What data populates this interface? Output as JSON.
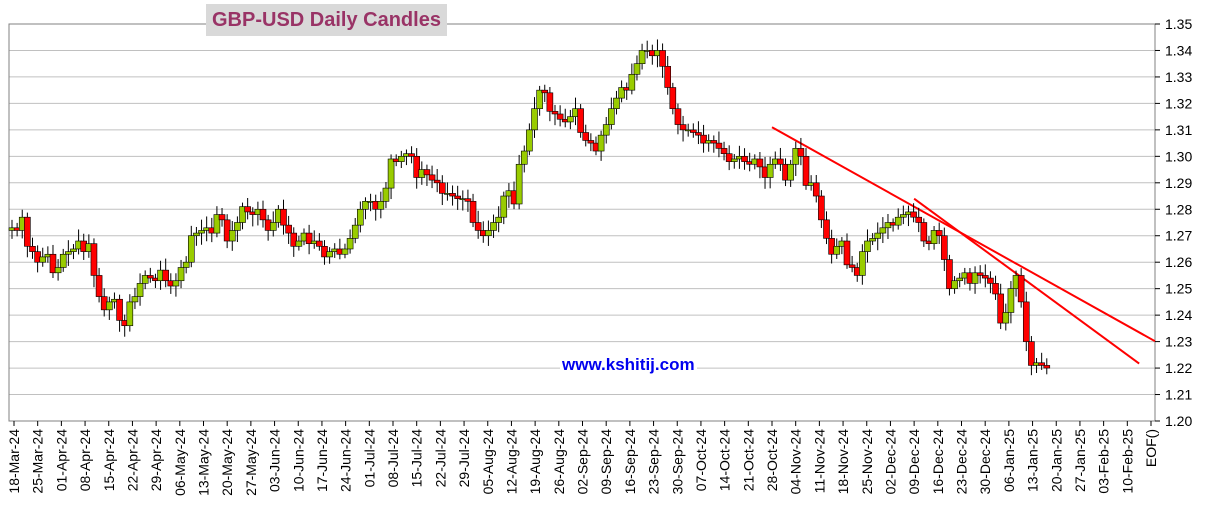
{
  "chart_data": {
    "type": "candlestick",
    "title": "GBP-USD Daily Candles",
    "watermark": "www.kshitij.com",
    "xlabel": "",
    "ylabel": "",
    "ylim": [
      1.2,
      1.35
    ],
    "yticks": [
      "1.20",
      "1.21",
      "1.22",
      "1.23",
      "1.24",
      "1.25",
      "1.26",
      "1.27",
      "1.28",
      "1.29",
      "1.30",
      "1.31",
      "1.32",
      "1.33",
      "1.34",
      "1.35"
    ],
    "xticks": [
      "18-Mar-24",
      "25-Mar-24",
      "01-Apr-24",
      "08-Apr-24",
      "15-Apr-24",
      "22-Apr-24",
      "29-Apr-24",
      "06-May-24",
      "13-May-24",
      "20-May-24",
      "27-May-24",
      "03-Jun-24",
      "10-Jun-24",
      "17-Jun-24",
      "24-Jun-24",
      "01-Jul-24",
      "08-Jul-24",
      "15-Jul-24",
      "22-Jul-24",
      "29-Jul-24",
      "05-Aug-24",
      "12-Aug-24",
      "19-Aug-24",
      "26-Aug-24",
      "02-Sep-24",
      "09-Sep-24",
      "16-Sep-24",
      "23-Sep-24",
      "30-Sep-24",
      "07-Oct-24",
      "14-Oct-24",
      "21-Oct-24",
      "28-Oct-24",
      "04-Nov-24",
      "11-Nov-24",
      "18-Nov-24",
      "25-Nov-24",
      "02-Dec-24",
      "09-Dec-24",
      "16-Dec-24",
      "23-Dec-24",
      "30-Dec-24",
      "06-Jan-25",
      "13-Jan-25",
      "20-Jan-25",
      "27-Jan-25",
      "03-Feb-25",
      "10-Feb-25",
      "EOF()"
    ],
    "grid": true,
    "colors": {
      "up": "#99cc00",
      "down": "#ff0000",
      "trendline": "#ff0000",
      "grid": "#c0c0c0",
      "title": "#993366",
      "watermark": "#0000ee"
    },
    "closes": [
      1.273,
      1.272,
      1.277,
      1.266,
      1.264,
      1.26,
      1.262,
      1.263,
      1.256,
      1.258,
      1.263,
      1.264,
      1.265,
      1.268,
      1.264,
      1.267,
      1.255,
      1.247,
      1.242,
      1.245,
      1.246,
      1.238,
      1.236,
      1.245,
      1.247,
      1.252,
      1.255,
      1.254,
      1.253,
      1.257,
      1.253,
      1.251,
      1.253,
      1.258,
      1.26,
      1.27,
      1.271,
      1.272,
      1.273,
      1.271,
      1.278,
      1.276,
      1.268,
      1.272,
      1.275,
      1.281,
      1.279,
      1.278,
      1.28,
      1.276,
      1.272,
      1.275,
      1.28,
      1.274,
      1.271,
      1.266,
      1.268,
      1.271,
      1.267,
      1.268,
      1.266,
      1.262,
      1.264,
      1.265,
      1.263,
      1.265,
      1.269,
      1.274,
      1.28,
      1.283,
      1.283,
      1.28,
      1.283,
      1.288,
      1.299,
      1.298,
      1.3,
      1.301,
      1.3,
      1.292,
      1.295,
      1.293,
      1.291,
      1.29,
      1.286,
      1.286,
      1.285,
      1.284,
      1.284,
      1.283,
      1.275,
      1.272,
      1.27,
      1.272,
      1.275,
      1.277,
      1.285,
      1.287,
      1.282,
      1.297,
      1.302,
      1.31,
      1.318,
      1.325,
      1.324,
      1.317,
      1.316,
      1.314,
      1.313,
      1.315,
      1.318,
      1.309,
      1.306,
      1.305,
      1.302,
      1.308,
      1.312,
      1.318,
      1.322,
      1.326,
      1.325,
      1.331,
      1.335,
      1.34,
      1.34,
      1.338,
      1.34,
      1.334,
      1.326,
      1.318,
      1.312,
      1.31,
      1.31,
      1.309,
      1.308,
      1.305,
      1.306,
      1.305,
      1.303,
      1.301,
      1.298,
      1.299,
      1.3,
      1.298,
      1.297,
      1.299,
      1.296,
      1.292,
      1.297,
      1.299,
      1.297,
      1.291,
      1.297,
      1.303,
      1.3,
      1.289,
      1.29,
      1.285,
      1.276,
      1.269,
      1.263,
      1.266,
      1.268,
      1.259,
      1.258,
      1.255,
      1.264,
      1.268,
      1.269,
      1.271,
      1.273,
      1.275,
      1.274,
      1.277,
      1.278,
      1.279,
      1.277,
      1.275,
      1.268,
      1.267,
      1.272,
      1.27,
      1.261,
      1.25,
      1.253,
      1.254,
      1.256,
      1.252,
      1.256,
      1.255,
      1.254,
      1.252,
      1.248,
      1.237,
      1.241,
      1.25,
      1.255,
      1.245,
      1.23,
      1.221,
      1.222,
      1.221,
      1.22
    ],
    "trendlines": [
      {
        "from": [
          "28-Oct-24",
          1.311
        ],
        "to": [
          "EOF()",
          1.231
        ]
      },
      {
        "from": [
          "09-Dec-24",
          1.284
        ],
        "to": [
          "10-Feb-25",
          1.225
        ]
      }
    ]
  }
}
